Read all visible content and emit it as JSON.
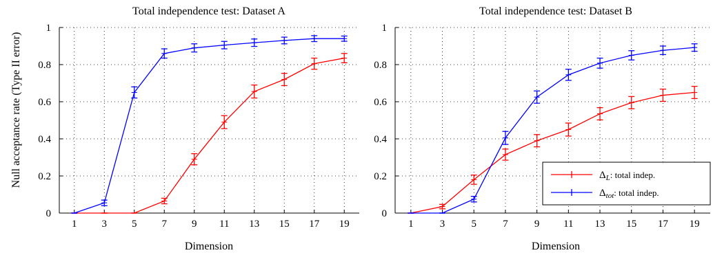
{
  "chart_data": [
    {
      "type": "line",
      "title": "Total independence test: Dataset A",
      "xlabel": "Dimension",
      "ylabel": "Null acceptance rate (Type II error)",
      "x": [
        1,
        3,
        5,
        7,
        9,
        11,
        13,
        15,
        17,
        19
      ],
      "xlim": [
        0,
        20
      ],
      "ylim": [
        0,
        1
      ],
      "xticks": [
        "1",
        "3",
        "5",
        "7",
        "9",
        "11",
        "13",
        "15",
        "17",
        "19"
      ],
      "yticks": [
        "0",
        "0.2",
        "0.4",
        "0.6",
        "0.8",
        "1"
      ],
      "grid": true,
      "series": [
        {
          "color": "#ff0000",
          "values": [
            0,
            0,
            0,
            0.065,
            0.29,
            0.49,
            0.655,
            0.72,
            0.805,
            0.835
          ],
          "errors": [
            0,
            0,
            0,
            0.015,
            0.03,
            0.035,
            0.035,
            0.033,
            0.03,
            0.025
          ]
        },
        {
          "color": "#0000ff",
          "values": [
            0,
            0.055,
            0.65,
            0.86,
            0.89,
            0.905,
            0.918,
            0.93,
            0.94,
            0.94
          ],
          "errors": [
            0,
            0.015,
            0.03,
            0.025,
            0.022,
            0.02,
            0.02,
            0.018,
            0.016,
            0.014
          ]
        }
      ]
    },
    {
      "type": "line",
      "title": "Total independence test: Dataset B",
      "xlabel": "Dimension",
      "ylabel": "",
      "x": [
        1,
        3,
        5,
        7,
        9,
        11,
        13,
        15,
        17,
        19
      ],
      "xlim": [
        0,
        20
      ],
      "ylim": [
        0,
        1
      ],
      "xticks": [
        "1",
        "3",
        "5",
        "7",
        "9",
        "11",
        "13",
        "15",
        "17",
        "19"
      ],
      "yticks": [
        "0",
        "0.2",
        "0.4",
        "0.6",
        "0.8",
        "1"
      ],
      "grid": true,
      "legend": {
        "position": "bottom-right",
        "entries": [
          {
            "name": "Δ",
            "sub": "L",
            "suffix": ": total indep.",
            "color": "#ff0000"
          },
          {
            "name": "Δ",
            "sub": "tot",
            "suffix": ": total indep.",
            "color": "#0000ff"
          }
        ]
      },
      "series": [
        {
          "color": "#ff0000",
          "values": [
            0,
            0.035,
            0.18,
            0.315,
            0.39,
            0.45,
            0.535,
            0.595,
            0.635,
            0.65
          ],
          "errors": [
            0,
            0.012,
            0.025,
            0.03,
            0.033,
            0.035,
            0.033,
            0.033,
            0.033,
            0.033
          ]
        },
        {
          "color": "#0000ff",
          "values": [
            0,
            0,
            0.075,
            0.405,
            0.625,
            0.745,
            0.808,
            0.85,
            0.877,
            0.892
          ],
          "errors": [
            0,
            0,
            0.015,
            0.035,
            0.033,
            0.03,
            0.027,
            0.025,
            0.023,
            0.02
          ]
        }
      ]
    }
  ]
}
